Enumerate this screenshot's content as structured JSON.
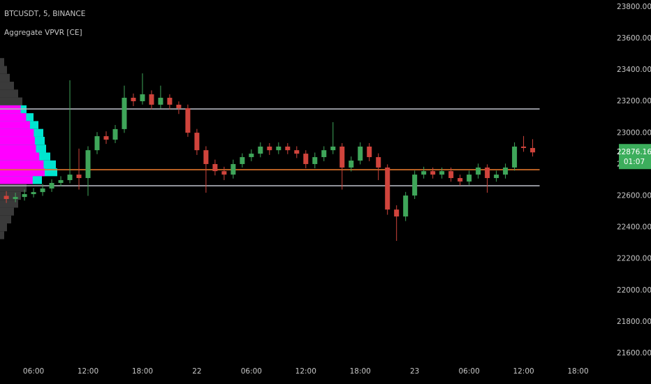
{
  "chart_data": {
    "type": "candlestick",
    "title": "BTCUSDT, 5, BINANCE",
    "indicator": "Aggregate VPVR [CE]",
    "up_color": "#3fa65a",
    "down_color": "#d0443c",
    "x": [
      3,
      4,
      5,
      6,
      7,
      8,
      9,
      10,
      11,
      12,
      13,
      14,
      15,
      16,
      17,
      18,
      19,
      20,
      21,
      22,
      23,
      24,
      25,
      26,
      27,
      28,
      29,
      30,
      31,
      32,
      33,
      34,
      35,
      36,
      37,
      38,
      39,
      40,
      41,
      42,
      43,
      44,
      45,
      46,
      47,
      48,
      49,
      50,
      51,
      52,
      53,
      54,
      55,
      56,
      57,
      58,
      59,
      60,
      61
    ],
    "open": [
      22600,
      22580,
      22593,
      22611,
      22624,
      22647,
      22682,
      22700,
      22735,
      22713,
      22890,
      22979,
      22957,
      23024,
      23223,
      23201,
      23245,
      23179,
      23223,
      23179,
      23157,
      23001,
      22890,
      22802,
      22757,
      22735,
      22802,
      22846,
      22868,
      22913,
      22890,
      22913,
      22890,
      22868,
      22802,
      22846,
      22890,
      22913,
      22780,
      22824,
      22913,
      22846,
      22780,
      22513,
      22469,
      22602,
      22735,
      22757,
      22735,
      22757,
      22713,
      22691,
      22735,
      22780,
      22713,
      22735,
      22780,
      22913,
      22904
    ],
    "high": [
      22630,
      22620,
      22640,
      22650,
      22675,
      22705,
      22725,
      23334,
      22900,
      22915,
      23005,
      23010,
      23050,
      23300,
      23250,
      23378,
      23270,
      23300,
      23245,
      23200,
      23180,
      23025,
      22915,
      22830,
      22785,
      22830,
      22870,
      22895,
      22940,
      22935,
      22940,
      22935,
      22915,
      22890,
      22875,
      22915,
      23068,
      22935,
      22850,
      22940,
      22935,
      22870,
      22800,
      22540,
      22625,
      22760,
      22785,
      22780,
      22780,
      22780,
      22735,
      22760,
      22805,
      22800,
      22760,
      22805,
      22940,
      22980,
      22960
    ],
    "low": [
      22555,
      22560,
      22570,
      22590,
      22600,
      22625,
      22660,
      22680,
      22640,
      22600,
      22865,
      22930,
      22935,
      23000,
      23170,
      23180,
      23150,
      23155,
      23150,
      23120,
      22975,
      22860,
      22620,
      22730,
      22700,
      22710,
      22780,
      22820,
      22845,
      22860,
      22865,
      22865,
      22840,
      22775,
      22775,
      22820,
      22865,
      22640,
      22755,
      22800,
      22820,
      22700,
      22480,
      22314,
      22440,
      22580,
      22710,
      22710,
      22710,
      22690,
      22665,
      22670,
      22710,
      22620,
      22690,
      22710,
      22760,
      22880,
      22850
    ],
    "close": [
      22580,
      22593,
      22611,
      22624,
      22647,
      22682,
      22700,
      22735,
      22713,
      22890,
      22979,
      22957,
      23024,
      23223,
      23201,
      23245,
      23179,
      23223,
      23179,
      23157,
      23001,
      22890,
      22802,
      22757,
      22735,
      22802,
      22846,
      22868,
      22913,
      22890,
      22913,
      22890,
      22868,
      22802,
      22846,
      22890,
      22913,
      22780,
      22824,
      22913,
      22846,
      22780,
      22513,
      22469,
      22602,
      22735,
      22757,
      22735,
      22757,
      22713,
      22691,
      22735,
      22780,
      22713,
      22735,
      22780,
      22913,
      22904,
      22876.16
    ],
    "xlim": [
      2.3,
      68.5
    ],
    "xticks": [
      {
        "value": 6,
        "label": "06:00"
      },
      {
        "value": 12,
        "label": "12:00"
      },
      {
        "value": 18,
        "label": "18:00"
      },
      {
        "value": 24,
        "label": "22"
      },
      {
        "value": 30,
        "label": "06:00"
      },
      {
        "value": 36,
        "label": "12:00"
      },
      {
        "value": 42,
        "label": "18:00"
      },
      {
        "value": 48,
        "label": "23"
      },
      {
        "value": 54,
        "label": "06:00"
      },
      {
        "value": 60,
        "label": "12:00"
      },
      {
        "value": 66,
        "label": "18:00"
      }
    ],
    "ylim": [
      21538,
      23844
    ],
    "yticks": [
      {
        "value": 21600,
        "label": "21600.00"
      },
      {
        "value": 21800,
        "label": "21800.00"
      },
      {
        "value": 22000,
        "label": "22000.00"
      },
      {
        "value": 22200,
        "label": "22200.00"
      },
      {
        "value": 22400,
        "label": "22400.00"
      },
      {
        "value": 22600,
        "label": "22600.00"
      },
      {
        "value": 22800,
        "label": "22800.00"
      },
      {
        "value": 23000,
        "label": "23000.00"
      },
      {
        "value": 23200,
        "label": "23200.00"
      },
      {
        "value": 23400,
        "label": "23400.00"
      },
      {
        "value": 23600,
        "label": "23600.00"
      },
      {
        "value": 23800,
        "label": "23800.00"
      }
    ],
    "value_area_high": 23152,
    "value_area_low": 22664,
    "poc": 22766,
    "level_color": "#b2b5be",
    "poc_color": "#e0762b",
    "profile": {
      "levels": [
        23450,
        23400,
        23350,
        23300,
        23250,
        23200,
        23150,
        23100,
        23050,
        23000,
        22950,
        22900,
        22850,
        22800,
        22750,
        22700,
        22650,
        22600,
        22550,
        22500,
        22450,
        22400,
        22350
      ],
      "volumes": [
        6,
        10,
        14,
        20,
        26,
        32,
        38,
        48,
        55,
        62,
        64,
        66,
        72,
        80,
        82,
        60,
        38,
        30,
        26,
        20,
        16,
        10,
        6
      ],
      "step": 50,
      "color": "#3a3a3a",
      "value_area_color": "#00e5d0",
      "core_color": "#ff00ff"
    },
    "last_price": 22876.16,
    "countdown": "01:07",
    "last_color": "#3cae5c"
  }
}
